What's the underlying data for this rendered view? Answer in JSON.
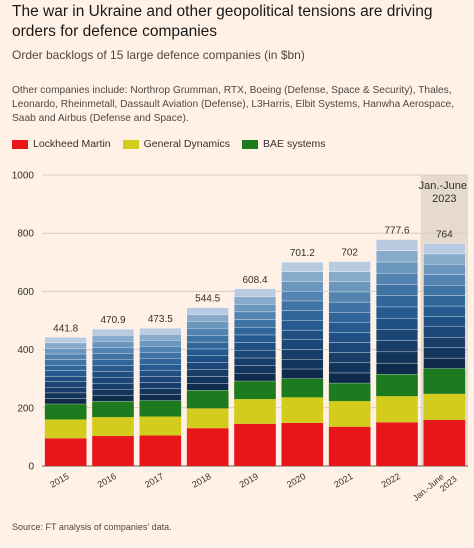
{
  "chart_data": {
    "type": "stacked-bar",
    "title": "The war in Ukraine and other geopolitical tensions are driving orders for defence companies",
    "subtitle": "Order backlogs of 15 large defence companies (in $bn)",
    "note": "Other companies include: Northrop Grumman, RTX, Boeing (Defense, Space & Security), Thales, Leonardo, Rheinmetall, Dassault Aviation (Defense), L3Harris, Elbit Systems, Hanwha Aerospace, Saab and Airbus (Defense and Space).",
    "source": "Source: FT analysis of companies' data.",
    "categories": [
      "2015",
      "2016",
      "2017",
      "2018",
      "2019",
      "2020",
      "2021",
      "2022",
      "Jan.-June 2023"
    ],
    "highlight_index": 8,
    "totals": [
      441.8,
      470.9,
      473.5,
      544.5,
      608.4,
      701.2,
      702,
      777.6,
      764
    ],
    "ylim": [
      0,
      1000
    ],
    "yticks": [
      0,
      200,
      400,
      600,
      800,
      1000
    ],
    "grid": true,
    "series": [
      {
        "name": "Lockheed Martin",
        "color": "#e8161b",
        "values": [
          95,
          103,
          105,
          130,
          145,
          148,
          135,
          150,
          158
        ]
      },
      {
        "name": "General Dynamics",
        "color": "#d4cc1c",
        "values": [
          65,
          65,
          65,
          68,
          85,
          88,
          88,
          90,
          90
        ]
      },
      {
        "name": "BAE systems",
        "color": "#1c7a1f",
        "values": [
          53,
          54,
          55,
          62,
          62,
          64,
          62,
          75,
          87
        ]
      },
      {
        "color": "#0f2b4c",
        "values": [
          19.1,
          20.7,
          20.7,
          23.7,
          26.4,
          33.4,
          34.8,
          38.6,
          35.8
        ]
      },
      {
        "color": "#13345b",
        "values": [
          19.1,
          20.7,
          20.7,
          23.7,
          26.4,
          33.4,
          34.8,
          38.6,
          35.8
        ]
      },
      {
        "color": "#173d68",
        "values": [
          19.1,
          20.7,
          20.7,
          23.7,
          26.4,
          33.4,
          34.8,
          38.6,
          35.8
        ]
      },
      {
        "color": "#1b4676",
        "values": [
          19.1,
          20.7,
          20.7,
          23.7,
          26.4,
          33.4,
          34.8,
          38.6,
          35.8
        ]
      },
      {
        "color": "#205083",
        "values": [
          19.1,
          20.7,
          20.7,
          23.7,
          26.4,
          33.4,
          34.8,
          38.6,
          35.8
        ]
      },
      {
        "color": "#275b8f",
        "values": [
          19.1,
          20.7,
          20.7,
          23.7,
          26.4,
          33.4,
          34.8,
          38.6,
          35.8
        ]
      },
      {
        "color": "#30669a",
        "values": [
          19.1,
          20.7,
          20.7,
          23.7,
          26.4,
          33.4,
          34.8,
          38.6,
          35.8
        ]
      },
      {
        "color": "#3f73a4",
        "values": [
          19.1,
          20.7,
          20.7,
          23.7,
          26.4,
          33.4,
          34.8,
          38.6,
          35.8
        ]
      },
      {
        "color": "#5383b0",
        "values": [
          19.1,
          20.7,
          20.7,
          23.7,
          26.4,
          33.4,
          34.8,
          38.6,
          35.8
        ]
      },
      {
        "color": "#6b96bd",
        "values": [
          19.1,
          20.7,
          20.7,
          23.7,
          26.4,
          33.4,
          34.8,
          38.6,
          35.8
        ]
      },
      {
        "color": "#88abcb",
        "values": [
          19.1,
          20.7,
          20.7,
          23.7,
          26.4,
          33.4,
          34.8,
          38.6,
          35.8
        ]
      },
      {
        "color": "#b8cbe0",
        "values": [
          19.1,
          20.7,
          20.7,
          23.7,
          26.4,
          33.4,
          34.8,
          38.6,
          35.8
        ]
      }
    ]
  }
}
